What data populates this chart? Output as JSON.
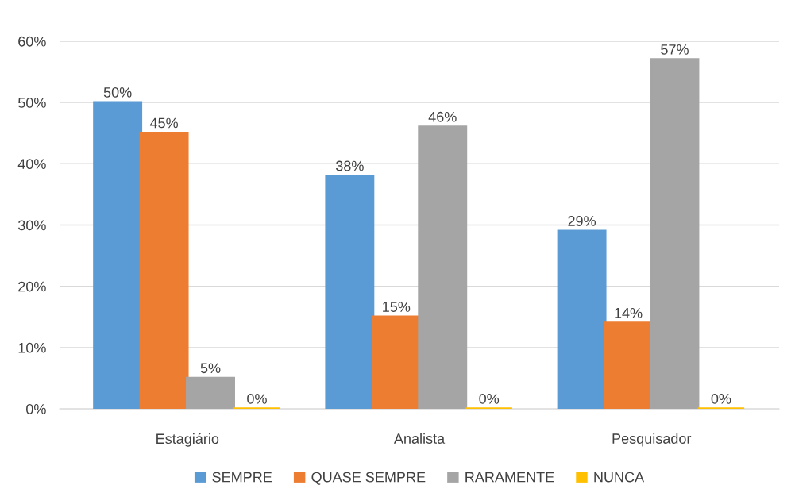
{
  "chart_data": {
    "type": "bar",
    "categories": [
      "Estagiário",
      "Analista",
      "Pesquisador"
    ],
    "series": [
      {
        "name": "SEMPRE",
        "color": "#5b9bd5",
        "values": [
          50,
          38,
          29
        ],
        "value_labels": [
          "50%",
          "38%",
          "29%"
        ]
      },
      {
        "name": "QUASE SEMPRE",
        "color": "#ed7d31",
        "values": [
          45,
          15,
          14
        ],
        "value_labels": [
          "45%",
          "15%",
          "14%"
        ]
      },
      {
        "name": "RARAMENTE",
        "color": "#a5a5a5",
        "values": [
          5,
          46,
          57
        ],
        "value_labels": [
          "5%",
          "46%",
          "57%"
        ]
      },
      {
        "name": "NUNCA",
        "color": "#ffc000",
        "values": [
          0,
          0,
          0
        ],
        "value_labels": [
          "0%",
          "0%",
          "0%"
        ]
      }
    ],
    "ylim": [
      0,
      60
    ],
    "yticks": [
      {
        "value": 0,
        "label": "0%"
      },
      {
        "value": 10,
        "label": "10%"
      },
      {
        "value": 20,
        "label": "20%"
      },
      {
        "value": 30,
        "label": "30%"
      },
      {
        "value": 40,
        "label": "40%"
      },
      {
        "value": 50,
        "label": "50%"
      },
      {
        "value": 60,
        "label": "60%"
      }
    ],
    "grid": "y",
    "legend": "bottom"
  }
}
